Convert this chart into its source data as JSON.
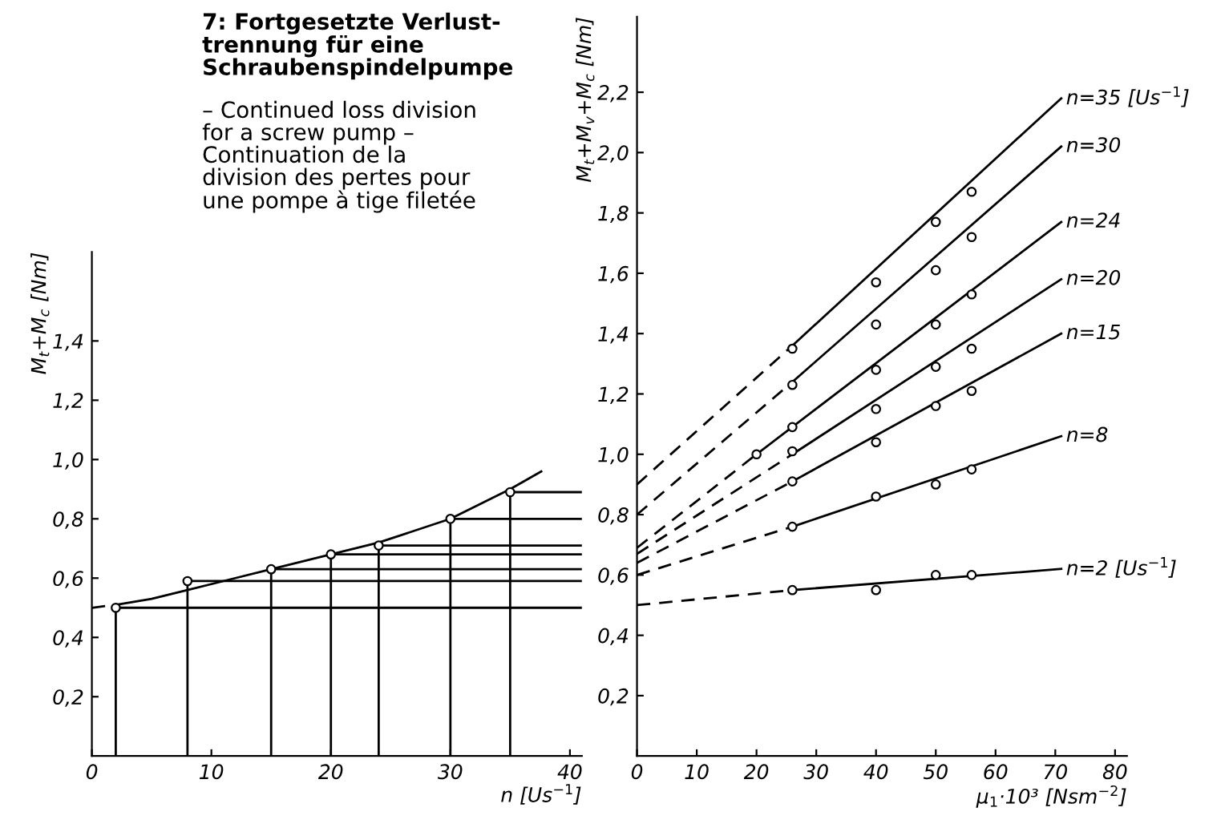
{
  "chart_data": [
    {
      "type": "line",
      "title": "7: Fortgesetzte Verlust-\ntrennung für eine\nSchraubenspindelpumpe",
      "subtitle": "– Continued loss division\nfor a screw pump –\nContinuation de la\ndivision des pertes pour\nune pompe à tige filetée",
      "xlabel": "n [Us$^{−1}$]",
      "ylabel": "M$_{t}$+M$_{c}$ [Nm]",
      "xlim": [
        0,
        41
      ],
      "ylim": [
        0,
        1.7
      ],
      "xticks": [
        0,
        10,
        20,
        30,
        40
      ],
      "yticks": [
        {
          "value": 0.2,
          "label": "0,2"
        },
        {
          "value": 0.4,
          "label": "0,4"
        },
        {
          "value": 0.6,
          "label": "0,6"
        },
        {
          "value": 0.8,
          "label": "0,8"
        },
        {
          "value": 1.0,
          "label": "1,0"
        },
        {
          "value": 1.2,
          "label": "1,2"
        },
        {
          "value": 1.4,
          "label": "1,4"
        }
      ],
      "grid": false,
      "legend": false,
      "series": [
        {
          "color": "#000000",
          "line_style": "dashed",
          "x": [
            0,
            2
          ],
          "values": [
            0.5,
            0.51
          ]
        },
        {
          "color": "#000000",
          "line_style": "solid",
          "x": [
            2,
            5,
            8,
            12,
            15,
            20,
            24,
            30,
            35,
            37.6
          ],
          "values": [
            0.51,
            0.53,
            0.56,
            0.6,
            0.63,
            0.68,
            0.72,
            0.8,
            0.9,
            0.96
          ]
        },
        {
          "type": "lollipop",
          "color": "#000000",
          "marker": "circle",
          "x": [
            2,
            8,
            15,
            20,
            24,
            30,
            35
          ],
          "values": [
            0.5,
            0.59,
            0.63,
            0.68,
            0.71,
            0.8,
            0.89
          ]
        },
        {
          "color": "#000000",
          "line_style": "solid",
          "x": [
            2,
            41
          ],
          "values": [
            0.5,
            0.5
          ]
        },
        {
          "color": "#000000",
          "line_style": "solid",
          "x": [
            8,
            41
          ],
          "values": [
            0.59,
            0.59
          ]
        },
        {
          "color": "#000000",
          "line_style": "solid",
          "x": [
            15,
            41
          ],
          "values": [
            0.63,
            0.63
          ]
        },
        {
          "color": "#000000",
          "line_style": "solid",
          "x": [
            20,
            41
          ],
          "values": [
            0.68,
            0.68
          ]
        },
        {
          "color": "#000000",
          "line_style": "solid",
          "x": [
            24,
            41
          ],
          "values": [
            0.71,
            0.71
          ]
        },
        {
          "color": "#000000",
          "line_style": "solid",
          "x": [
            30,
            41
          ],
          "values": [
            0.8,
            0.8
          ]
        },
        {
          "color": "#000000",
          "line_style": "solid",
          "x": [
            35,
            41
          ],
          "values": [
            0.89,
            0.89
          ]
        }
      ]
    },
    {
      "type": "line",
      "xlabel": "μ$_{1}$·10³ [Nsm$^{−2}$]",
      "ylabel": "M$_{t}$+M$_{v}$+M$_{c}$ [Nm]",
      "xlim": [
        0,
        82
      ],
      "ylim": [
        0,
        2.45
      ],
      "xticks": [
        0,
        10,
        20,
        30,
        40,
        50,
        60,
        70,
        80
      ],
      "yticks": [
        {
          "value": 0.2,
          "label": "0,2"
        },
        {
          "value": 0.4,
          "label": "0,4"
        },
        {
          "value": 0.6,
          "label": "0,6"
        },
        {
          "value": 0.8,
          "label": "0,8"
        },
        {
          "value": 1.0,
          "label": "1,0"
        },
        {
          "value": 1.2,
          "label": "1,2"
        },
        {
          "value": 1.4,
          "label": "1,4"
        },
        {
          "value": 1.6,
          "label": "1,6"
        },
        {
          "value": 1.8,
          "label": "1,8"
        },
        {
          "value": 2.0,
          "label": "2,0"
        },
        {
          "value": 2.2,
          "label": "2,2"
        }
      ],
      "grid": false,
      "legend": false,
      "series": [
        {
          "color": "#000000",
          "line_style": "dashed",
          "x": [
            0,
            26
          ],
          "values": [
            0.9,
            1.36
          ]
        },
        {
          "name": "n=35 [Us$^{−1}$]",
          "color": "#000000",
          "line_style": "solid",
          "x": [
            26,
            71
          ],
          "values": [
            1.36,
            2.18
          ]
        },
        {
          "color": "#000000",
          "line_style": "dashed",
          "x": [
            0,
            26
          ],
          "values": [
            0.8,
            1.24
          ]
        },
        {
          "name": "n=30",
          "color": "#000000",
          "line_style": "solid",
          "x": [
            26,
            71
          ],
          "values": [
            1.24,
            2.02
          ]
        },
        {
          "color": "#000000",
          "line_style": "dashed",
          "x": [
            0,
            20
          ],
          "values": [
            0.69,
            1.0
          ]
        },
        {
          "name": "n=24",
          "color": "#000000",
          "line_style": "solid",
          "x": [
            20,
            71
          ],
          "values": [
            1.0,
            1.77
          ]
        },
        {
          "color": "#000000",
          "line_style": "dashed",
          "x": [
            0,
            26
          ],
          "values": [
            0.67,
            1.0
          ]
        },
        {
          "name": "n=20",
          "color": "#000000",
          "line_style": "solid",
          "x": [
            26,
            71
          ],
          "values": [
            1.0,
            1.58
          ]
        },
        {
          "color": "#000000",
          "line_style": "dashed",
          "x": [
            0,
            26
          ],
          "values": [
            0.64,
            0.91
          ]
        },
        {
          "name": "n=15",
          "color": "#000000",
          "line_style": "solid",
          "x": [
            26,
            71
          ],
          "values": [
            0.91,
            1.4
          ]
        },
        {
          "color": "#000000",
          "line_style": "dashed",
          "x": [
            0,
            26
          ],
          "values": [
            0.6,
            0.76
          ]
        },
        {
          "name": "n=8",
          "color": "#000000",
          "line_style": "solid",
          "x": [
            26,
            71
          ],
          "values": [
            0.76,
            1.06
          ]
        },
        {
          "color": "#000000",
          "line_style": "dashed",
          "x": [
            0,
            26
          ],
          "values": [
            0.5,
            0.55
          ]
        },
        {
          "name": "n=2 [Us$^{−1}$]",
          "color": "#000000",
          "line_style": "solid",
          "x": [
            26,
            71
          ],
          "values": [
            0.55,
            0.62
          ]
        },
        {
          "type": "scatter",
          "color": "#000000",
          "marker": "circle",
          "x": [
            26,
            40,
            50,
            56,
            26,
            40,
            50,
            56,
            20,
            26,
            40,
            50,
            56,
            26,
            40,
            50,
            56,
            26,
            40,
            50,
            56,
            26,
            40,
            50,
            56,
            26,
            40,
            50,
            56
          ],
          "values": [
            1.35,
            1.57,
            1.77,
            1.87,
            1.23,
            1.43,
            1.61,
            1.72,
            1.0,
            1.09,
            1.28,
            1.43,
            1.53,
            1.01,
            1.15,
            1.29,
            1.35,
            0.91,
            1.04,
            1.16,
            1.21,
            0.76,
            0.86,
            0.9,
            0.95,
            0.55,
            0.55,
            0.6,
            0.6
          ]
        }
      ]
    }
  ]
}
